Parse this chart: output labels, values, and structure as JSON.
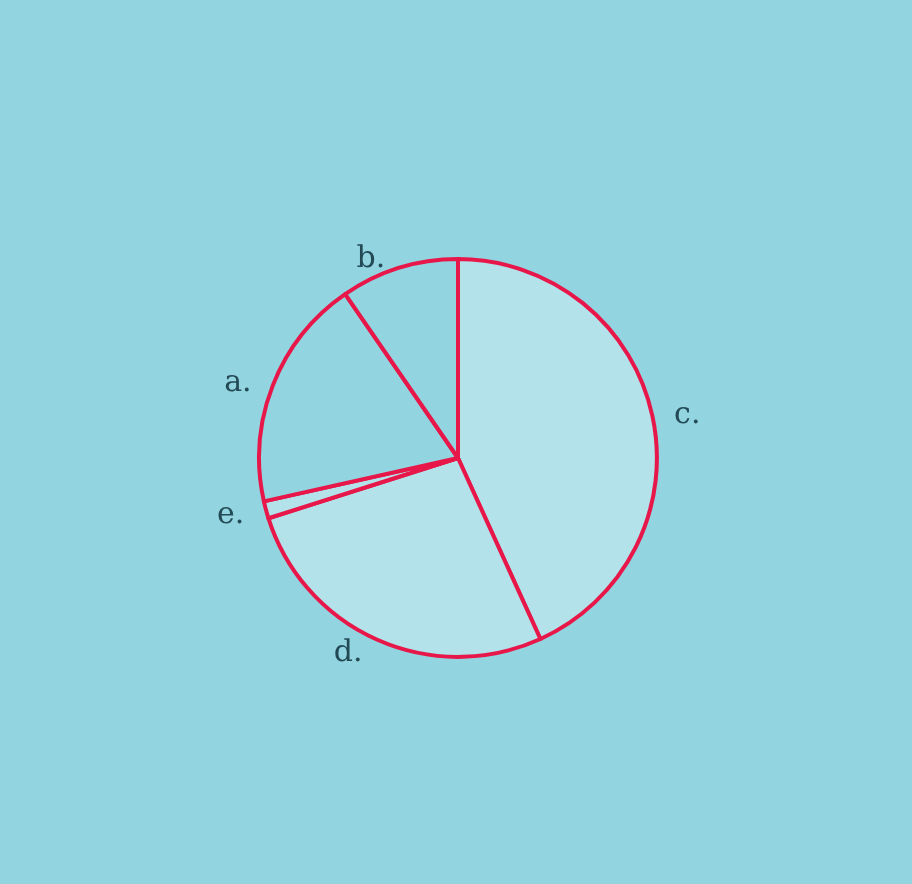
{
  "chart_data": {
    "type": "pie",
    "categories": [
      "c.",
      "d.",
      "e.",
      "a.",
      "b."
    ],
    "values": [
      43.2,
      26.9,
      1.4,
      18.9,
      9.6
    ],
    "colors": [
      "#b3e2ea",
      "#b3e2ea",
      "#b3e2ea",
      "#92d5e1",
      "#92d5e1"
    ],
    "legend": false
  }
}
